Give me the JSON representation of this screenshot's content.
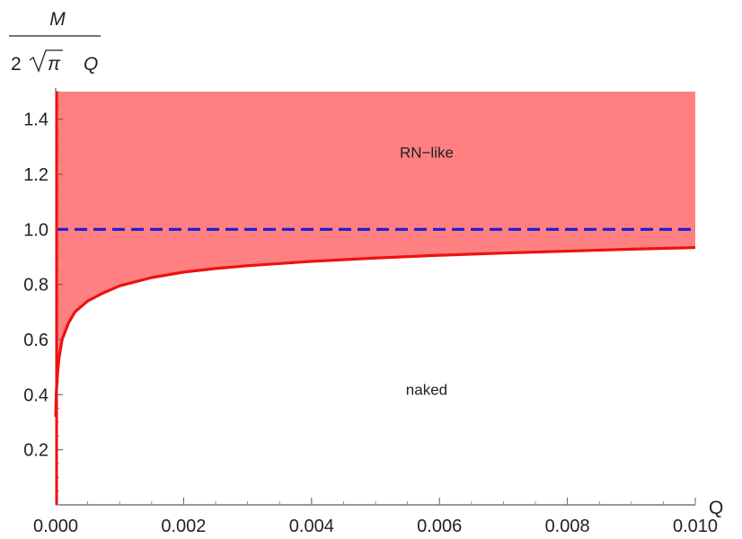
{
  "chart_data": {
    "type": "area",
    "ylabel": {
      "numerator": "M",
      "denominator_prefix": "2",
      "denominator_radicand": "π",
      "denominator_suffix": "Q"
    },
    "xlabel": "Q",
    "xlim": [
      0,
      0.01
    ],
    "ylim": [
      0,
      1.5
    ],
    "x_ticks": [
      0.0,
      0.002,
      0.004,
      0.006,
      0.008,
      0.01
    ],
    "x_tick_labels": [
      "0.000",
      "0.002",
      "0.004",
      "0.006",
      "0.008",
      "0.010"
    ],
    "y_ticks": [
      0.2,
      0.4,
      0.6,
      0.8,
      1.0,
      1.2,
      1.4
    ],
    "y_tick_labels": [
      "0.2",
      "0.4",
      "0.6",
      "0.8",
      "1.0",
      "1.2",
      "1.4"
    ],
    "grid": false,
    "series": [
      {
        "style": "solid",
        "color": "#ee1111",
        "x": [
          0.0,
          1e-05,
          3e-05,
          5e-05,
          0.0001,
          0.0002,
          0.0003,
          0.0005,
          0.00075,
          0.001,
          0.0015,
          0.002,
          0.0025,
          0.003,
          0.004,
          0.005,
          0.006,
          0.007,
          0.008,
          0.009,
          0.01
        ],
        "y": [
          0.32,
          0.41,
          0.48,
          0.53,
          0.6,
          0.66,
          0.7,
          0.74,
          0.77,
          0.795,
          0.825,
          0.845,
          0.858,
          0.868,
          0.884,
          0.896,
          0.906,
          0.914,
          0.921,
          0.928,
          0.934
        ]
      },
      {
        "style": "dashed",
        "color": "#1a1adf",
        "x": [
          0.0,
          0.01
        ],
        "y": [
          1.0,
          1.0
        ]
      }
    ],
    "fill": {
      "color": "#ff8080",
      "between": "curve-and-top"
    },
    "annotations": [
      {
        "text": "RN−like",
        "x": 0.0058,
        "y": 1.26
      },
      {
        "text": "naked",
        "x": 0.0058,
        "y": 0.4
      }
    ]
  }
}
